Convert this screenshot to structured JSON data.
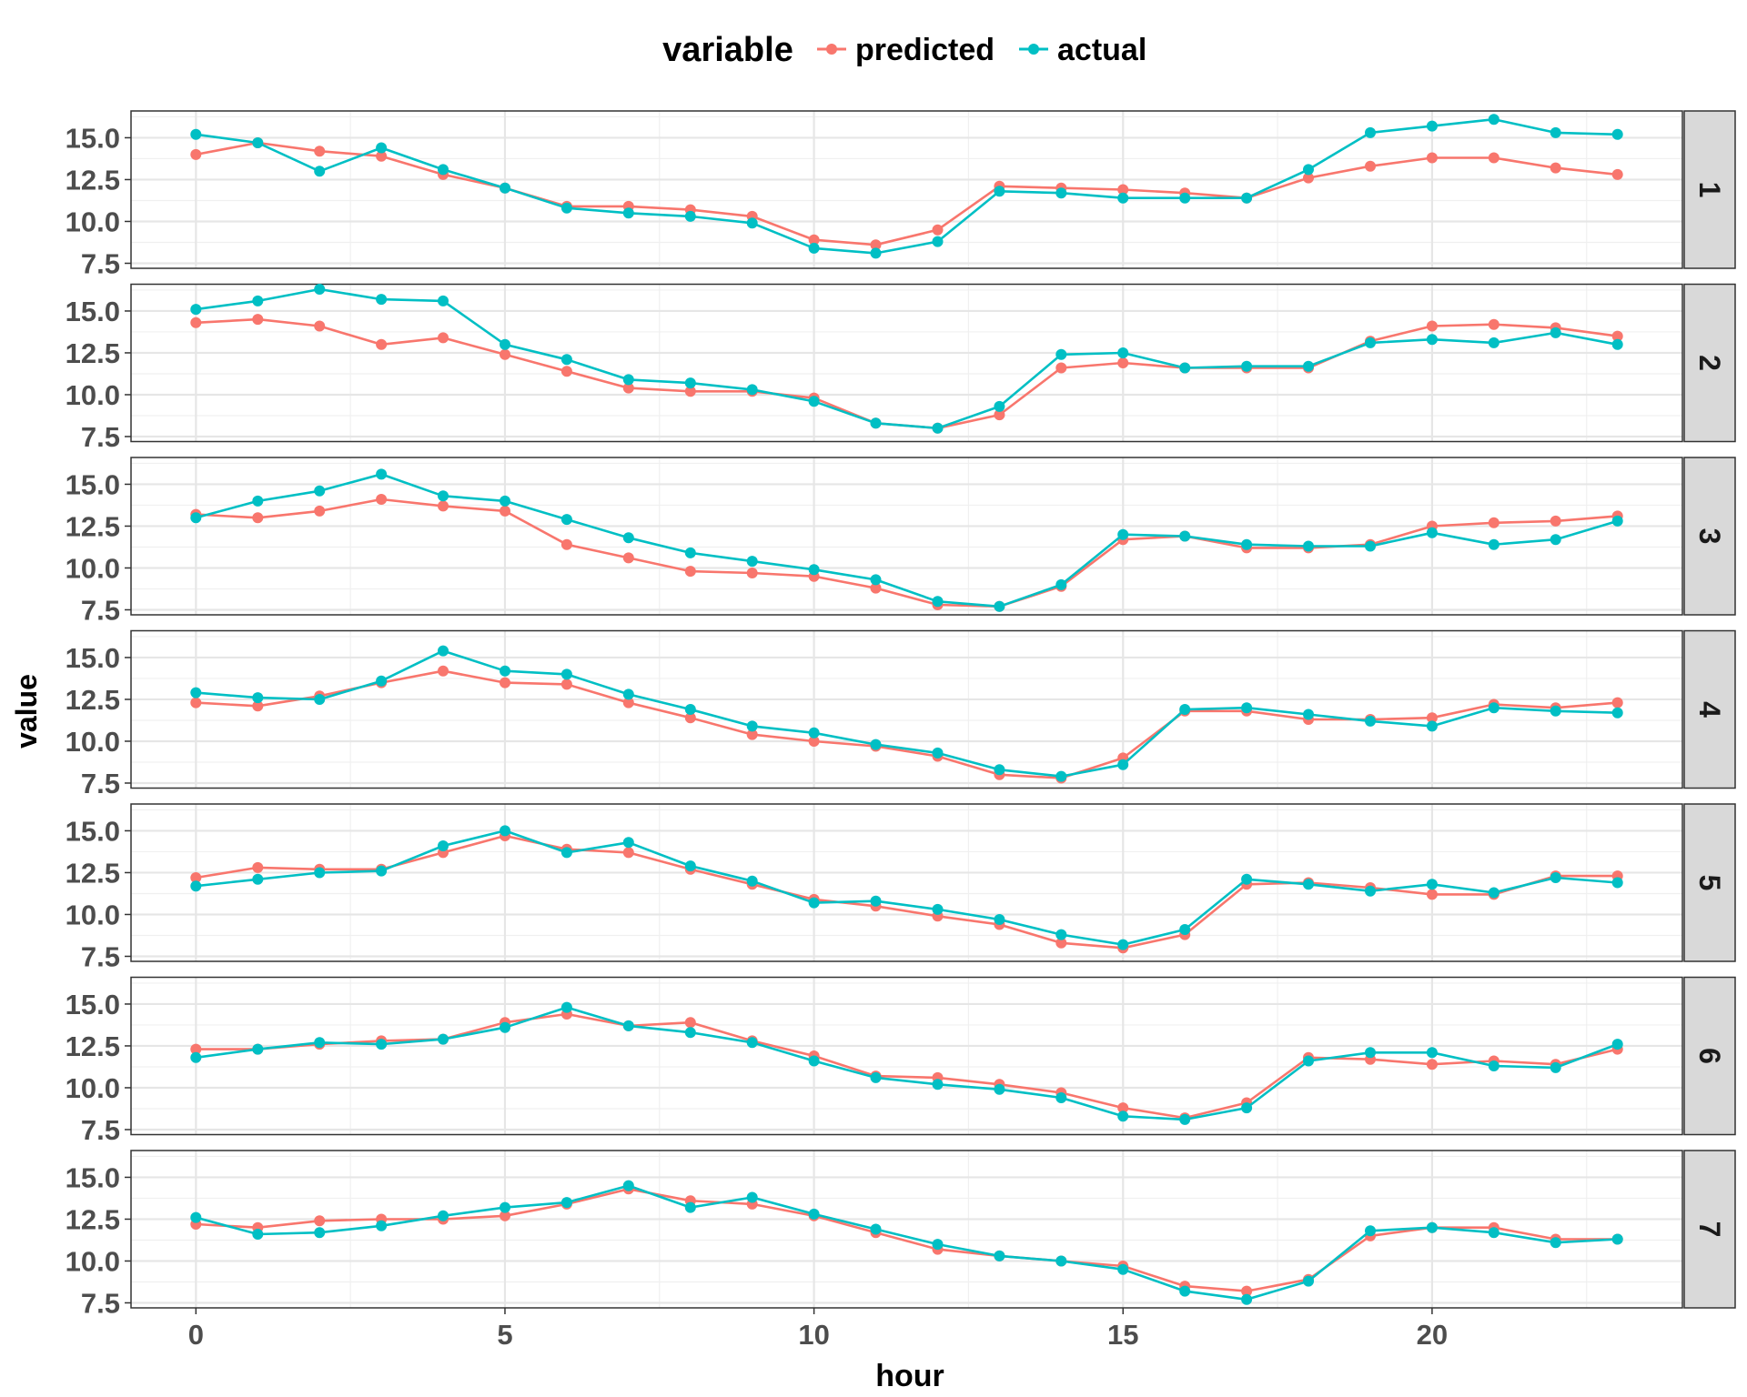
{
  "chart_data": {
    "type": "line",
    "facet_variable": "",
    "xlabel": "hour",
    "ylabel": "value",
    "legend": {
      "title": "variable",
      "position": "top"
    },
    "x_ticks": [
      0,
      5,
      10,
      15,
      20
    ],
    "y_ticks": [
      "15.0",
      "12.5",
      "10.0",
      "7.5"
    ],
    "xlim": [
      -1.05,
      24.05
    ],
    "ylim": [
      7.2,
      16.6
    ],
    "grid": true,
    "x": [
      0,
      1,
      2,
      3,
      4,
      5,
      6,
      7,
      8,
      9,
      10,
      11,
      12,
      13,
      14,
      15,
      16,
      17,
      18,
      19,
      20,
      21,
      22,
      23
    ],
    "series_info": [
      {
        "name": "predicted",
        "color": "#F8766D"
      },
      {
        "name": "actual",
        "color": "#00BFC4"
      }
    ],
    "panels": [
      {
        "label": "1",
        "predicted": [
          14.0,
          14.7,
          14.2,
          13.9,
          12.8,
          12.0,
          10.9,
          10.9,
          10.7,
          10.3,
          8.9,
          8.6,
          9.5,
          12.1,
          12.0,
          11.9,
          11.7,
          11.4,
          12.6,
          13.3,
          13.8,
          13.8,
          13.2,
          12.8
        ],
        "actual": [
          15.2,
          14.7,
          13.0,
          14.4,
          13.1,
          12.0,
          10.8,
          10.5,
          10.3,
          9.9,
          8.4,
          8.1,
          8.8,
          11.8,
          11.7,
          11.4,
          11.4,
          11.4,
          13.1,
          15.3,
          15.7,
          16.1,
          15.3,
          15.2
        ]
      },
      {
        "label": "2",
        "predicted": [
          14.3,
          14.5,
          14.1,
          13.0,
          13.4,
          12.4,
          11.4,
          10.4,
          10.2,
          10.2,
          9.8,
          8.3,
          8.0,
          8.8,
          11.6,
          11.9,
          11.6,
          11.6,
          11.6,
          13.2,
          14.1,
          14.2,
          14.0,
          13.5
        ],
        "actual": [
          15.1,
          15.6,
          16.3,
          15.7,
          15.6,
          13.0,
          12.1,
          10.9,
          10.7,
          10.3,
          9.6,
          8.3,
          8.0,
          9.3,
          12.4,
          12.5,
          11.6,
          11.7,
          11.7,
          13.1,
          13.3,
          13.1,
          13.7,
          13.0
        ]
      },
      {
        "label": "3",
        "predicted": [
          13.2,
          13.0,
          13.4,
          14.1,
          13.7,
          13.4,
          11.4,
          10.6,
          9.8,
          9.7,
          9.5,
          8.8,
          7.8,
          7.7,
          8.9,
          11.7,
          11.9,
          11.2,
          11.2,
          11.4,
          12.5,
          12.7,
          12.8,
          13.1
        ],
        "actual": [
          13.0,
          14.0,
          14.6,
          15.6,
          14.3,
          14.0,
          12.9,
          11.8,
          10.9,
          10.4,
          9.9,
          9.3,
          8.0,
          7.7,
          9.0,
          12.0,
          11.9,
          11.4,
          11.3,
          11.3,
          12.1,
          11.4,
          11.7,
          12.8
        ]
      },
      {
        "label": "4",
        "predicted": [
          12.3,
          12.1,
          12.7,
          13.5,
          14.2,
          13.5,
          13.4,
          12.3,
          11.4,
          10.4,
          10.0,
          9.7,
          9.1,
          8.0,
          7.8,
          9.0,
          11.8,
          11.8,
          11.3,
          11.3,
          11.4,
          12.2,
          12.0,
          12.3
        ],
        "actual": [
          12.9,
          12.6,
          12.5,
          13.6,
          15.4,
          14.2,
          14.0,
          12.8,
          11.9,
          10.9,
          10.5,
          9.8,
          9.3,
          8.3,
          7.9,
          8.6,
          11.9,
          12.0,
          11.6,
          11.2,
          10.9,
          12.0,
          11.8,
          11.7
        ]
      },
      {
        "label": "5",
        "predicted": [
          12.2,
          12.8,
          12.7,
          12.7,
          13.7,
          14.7,
          13.9,
          13.7,
          12.7,
          11.8,
          10.9,
          10.5,
          9.9,
          9.4,
          8.3,
          8.0,
          8.8,
          11.8,
          11.9,
          11.6,
          11.2,
          11.2,
          12.3,
          12.3
        ],
        "actual": [
          11.7,
          12.1,
          12.5,
          12.6,
          14.1,
          15.0,
          13.7,
          14.3,
          12.9,
          12.0,
          10.7,
          10.8,
          10.3,
          9.7,
          8.8,
          8.2,
          9.1,
          12.1,
          11.8,
          11.4,
          11.8,
          11.3,
          12.2,
          11.9
        ]
      },
      {
        "label": "6",
        "predicted": [
          12.3,
          12.3,
          12.6,
          12.8,
          12.9,
          13.9,
          14.4,
          13.7,
          13.9,
          12.8,
          11.9,
          10.7,
          10.6,
          10.2,
          9.7,
          8.8,
          8.2,
          9.1,
          11.8,
          11.7,
          11.4,
          11.6,
          11.4,
          12.3
        ],
        "actual": [
          11.8,
          12.3,
          12.7,
          12.6,
          12.9,
          13.6,
          14.8,
          13.7,
          13.3,
          12.7,
          11.6,
          10.6,
          10.2,
          9.9,
          9.4,
          8.3,
          8.1,
          8.8,
          11.6,
          12.1,
          12.1,
          11.3,
          11.2,
          12.6
        ]
      },
      {
        "label": "7",
        "predicted": [
          12.2,
          12.0,
          12.4,
          12.5,
          12.5,
          12.7,
          13.4,
          14.3,
          13.6,
          13.4,
          12.7,
          11.7,
          10.7,
          10.3,
          10.0,
          9.7,
          8.5,
          8.2,
          8.9,
          11.5,
          12.0,
          12.0,
          11.3,
          11.3
        ],
        "actual": [
          12.6,
          11.6,
          11.7,
          12.1,
          12.7,
          13.2,
          13.5,
          14.5,
          13.2,
          13.8,
          12.8,
          11.9,
          11.0,
          10.3,
          10.0,
          9.5,
          8.2,
          7.7,
          8.8,
          11.8,
          12.0,
          11.7,
          11.1,
          11.3
        ]
      }
    ]
  }
}
